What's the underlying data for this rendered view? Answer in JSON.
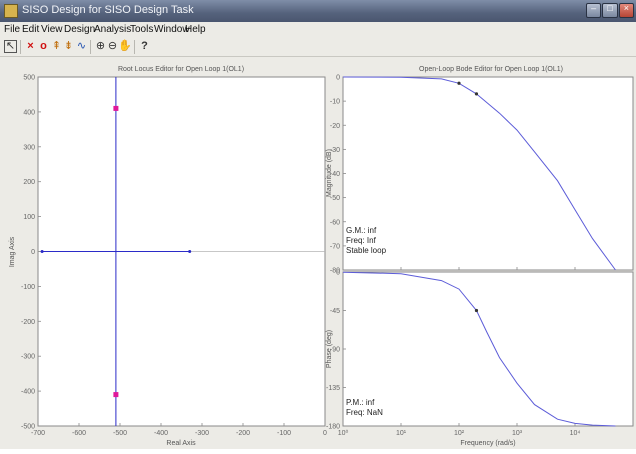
{
  "window": {
    "title": "SISO Design for SISO Design Task",
    "app_icon": "matlab-icon",
    "controls": {
      "minimize": "–",
      "maximize": "□",
      "close": "×"
    }
  },
  "menu": [
    "File",
    "Edit",
    "View",
    "Design",
    "Analysis",
    "Tools",
    "Window",
    "Help"
  ],
  "toolbar": {
    "icons": [
      "pointer-icon",
      "add-pole-icon",
      "add-zero-icon",
      "add-lead-icon",
      "add-lag-icon",
      "add-notch-icon",
      "zoom-in-icon",
      "zoom-out-icon",
      "pan-icon",
      "help-icon"
    ],
    "glyphs": [
      "↖",
      "×",
      "o",
      "⇞",
      "⇟",
      "∿",
      "⊕",
      "⊖",
      "✋",
      "?"
    ]
  },
  "root_locus": {
    "title": "Root Locus Editor for Open Loop 1(OL1)",
    "xlabel": "Real Axis",
    "ylabel": "Imag Axis",
    "xticks": [
      "-700",
      "-600",
      "-500",
      "-400",
      "-300",
      "-200",
      "-100",
      "0"
    ],
    "yticks": [
      "500",
      "400",
      "300",
      "200",
      "100",
      "0",
      "-100",
      "-200",
      "-300",
      "-400",
      "-500"
    ]
  },
  "bode": {
    "title": "Open-Loop Bode Editor for Open Loop 1(OL1)",
    "mag_ylabel": "Magnitude (dB)",
    "mag_yticks": [
      "0",
      "-10",
      "-20",
      "-30",
      "-40",
      "-50",
      "-60",
      "-70",
      "-80"
    ],
    "mag_annotations": [
      "G.M.: inf",
      "Freq: Inf",
      "Stable loop"
    ],
    "phase_ylabel": "Phase (deg)",
    "phase_yticks": [
      "0",
      "-45",
      "-90",
      "-135",
      "-180"
    ],
    "phase_annotations": [
      "P.M.: inf",
      "Freq: NaN"
    ],
    "xlabel": "Frequency (rad/s)",
    "xticks": [
      "10⁰",
      "10¹",
      "10²",
      "10³",
      "10⁴"
    ]
  },
  "chart_data": [
    {
      "type": "scatter",
      "title": "Root Locus Editor for Open Loop 1(OL1)",
      "xlabel": "Real Axis",
      "ylabel": "Imag Axis",
      "xlim": [
        -700,
        0
      ],
      "ylim": [
        -500,
        500
      ],
      "grid": false,
      "series": [
        {
          "x": [
            -690,
            -330
          ],
          "y": [
            0,
            0
          ]
        },
        {
          "x": [
            -510,
            -510
          ],
          "y": [
            500,
            -500
          ]
        }
      ],
      "closed_loop_poles": {
        "x": [
          -510,
          -510
        ],
        "y": [
          410,
          -410
        ]
      },
      "colors": {
        "locus": "#2b2bc8",
        "poles": "#e0189a"
      }
    },
    {
      "type": "line",
      "title": "Open-Loop Bode Editor for Open Loop 1(OL1)",
      "ylabel": "Magnitude (dB)",
      "xlabel": "Frequency (rad/s)",
      "xscale": "log",
      "xlim": [
        1,
        100000
      ],
      "ylim": [
        -80,
        0
      ],
      "grid": false,
      "x": [
        1,
        10,
        50,
        100,
        200,
        500,
        1000,
        2000,
        5000,
        10000,
        20000,
        50000
      ],
      "values": [
        0,
        -0.1,
        -0.8,
        -2.6,
        -7.0,
        -15.0,
        -22.0,
        -31.0,
        -43.0,
        -55.0,
        -67.0,
        -81.0
      ],
      "colors": {
        "line": "#5c5cd8"
      }
    },
    {
      "type": "line",
      "title": "",
      "ylabel": "Phase (deg)",
      "xlabel": "Frequency (rad/s)",
      "xscale": "log",
      "xlim": [
        1,
        100000
      ],
      "ylim": [
        -180,
        0
      ],
      "grid": false,
      "x": [
        1,
        10,
        50,
        100,
        200,
        300,
        500,
        1000,
        2000,
        5000,
        10000,
        20000,
        50000
      ],
      "values": [
        -0.2,
        -2,
        -10,
        -20,
        -45,
        -70,
        -100,
        -130,
        -155,
        -172,
        -177,
        -179,
        -180
      ],
      "colors": {
        "line": "#5c5cd8"
      }
    }
  ]
}
